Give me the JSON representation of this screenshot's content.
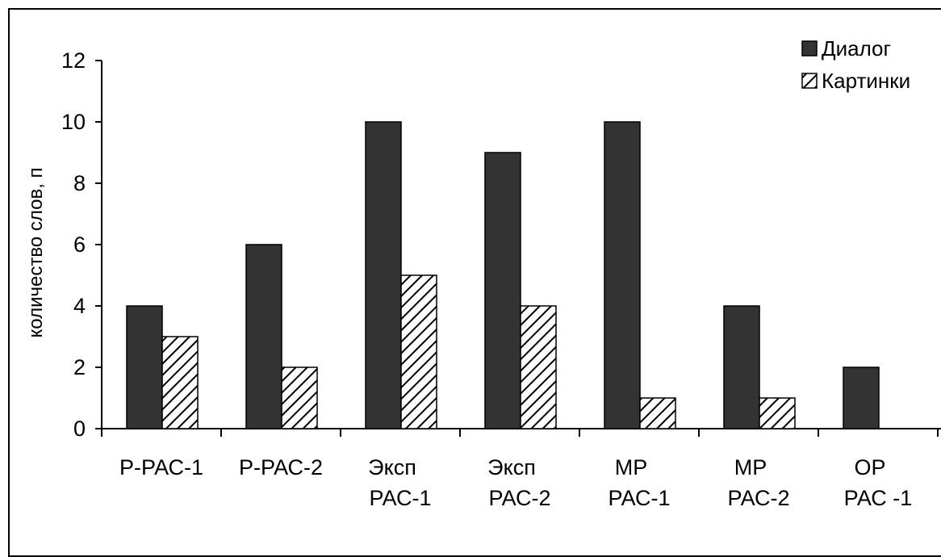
{
  "chart_data": {
    "type": "bar",
    "title": "",
    "xlabel": "",
    "ylabel": "количество слов, п",
    "ylim": [
      0,
      12
    ],
    "yticks": [
      0,
      2,
      4,
      6,
      8,
      10,
      12
    ],
    "grid": false,
    "legend_position": "top-right",
    "categories": [
      [
        "Р-РАС-1"
      ],
      [
        "Р-РАС-2"
      ],
      [
        "Эксп",
        "РАС-1"
      ],
      [
        "Эксп",
        "РАС-2"
      ],
      [
        "МР",
        "РАС-1"
      ],
      [
        "МР",
        "РАС-2"
      ],
      [
        "ОР",
        "РАС -1"
      ]
    ],
    "series": [
      {
        "name": "Диалог",
        "values": [
          4,
          6,
          10,
          9,
          10,
          4,
          2
        ],
        "fill": "#333333",
        "pattern": "solid"
      },
      {
        "name": "Картинки",
        "values": [
          3,
          2,
          5,
          4,
          1,
          1,
          0
        ],
        "fill": "#ffffff",
        "pattern": "diagonal-hatch"
      }
    ]
  }
}
